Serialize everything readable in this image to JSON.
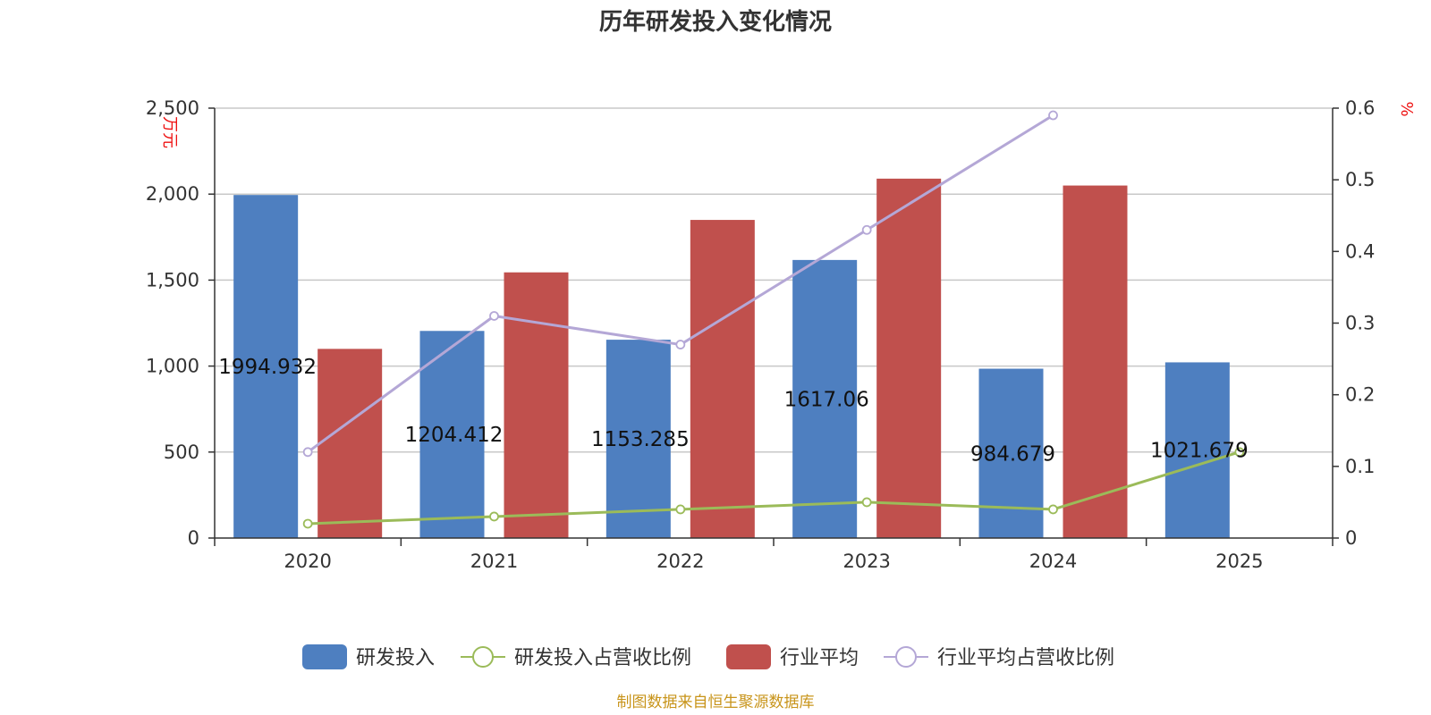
{
  "chart_data": {
    "type": "bar",
    "title": "历年研发投入变化情况",
    "categories": [
      "2020",
      "2021",
      "2022",
      "2023",
      "2024",
      "2025"
    ],
    "y_left": {
      "unit": "万元",
      "ylim": [
        0,
        2500
      ],
      "ticks": [
        0,
        500,
        1000,
        1500,
        2000,
        2500
      ],
      "tick_labels": [
        "0",
        "500",
        "1,000",
        "1,500",
        "2,000",
        "2,500"
      ]
    },
    "y_right": {
      "unit": "%",
      "ylim": [
        0,
        0.6
      ],
      "ticks": [
        0,
        0.1,
        0.2,
        0.3,
        0.4,
        0.5,
        0.6
      ],
      "tick_labels": [
        "0",
        "0.1",
        "0.2",
        "0.3",
        "0.4",
        "0.5",
        "0.6"
      ]
    },
    "grid": true,
    "legend_position": "bottom-center",
    "series": [
      {
        "name": "研发投入",
        "type": "bar",
        "axis": "left",
        "color": "#4e7fc0",
        "values": [
          1994.932,
          1204.412,
          1153.285,
          1617.06,
          984.679,
          1021.679
        ],
        "labels": [
          "1994.932",
          "1204.412",
          "1153.285",
          "1617.06",
          "984.679",
          "1021.679"
        ]
      },
      {
        "name": "研发投入占营收比例",
        "type": "line",
        "axis": "right",
        "color": "#9bbb59",
        "values": [
          0.02,
          0.03,
          0.04,
          0.05,
          0.04,
          0.12
        ]
      },
      {
        "name": "行业平均",
        "type": "bar",
        "axis": "left",
        "color": "#c0504d",
        "values": [
          1100,
          1545,
          1850,
          2090,
          2050,
          null
        ]
      },
      {
        "name": "行业平均占营收比例",
        "type": "line",
        "axis": "right",
        "color": "#b4a7d6",
        "values": [
          0.12,
          0.31,
          0.27,
          0.43,
          0.59,
          null
        ]
      }
    ]
  },
  "footer": {
    "source": "制图数据来自恒生聚源数据库"
  }
}
